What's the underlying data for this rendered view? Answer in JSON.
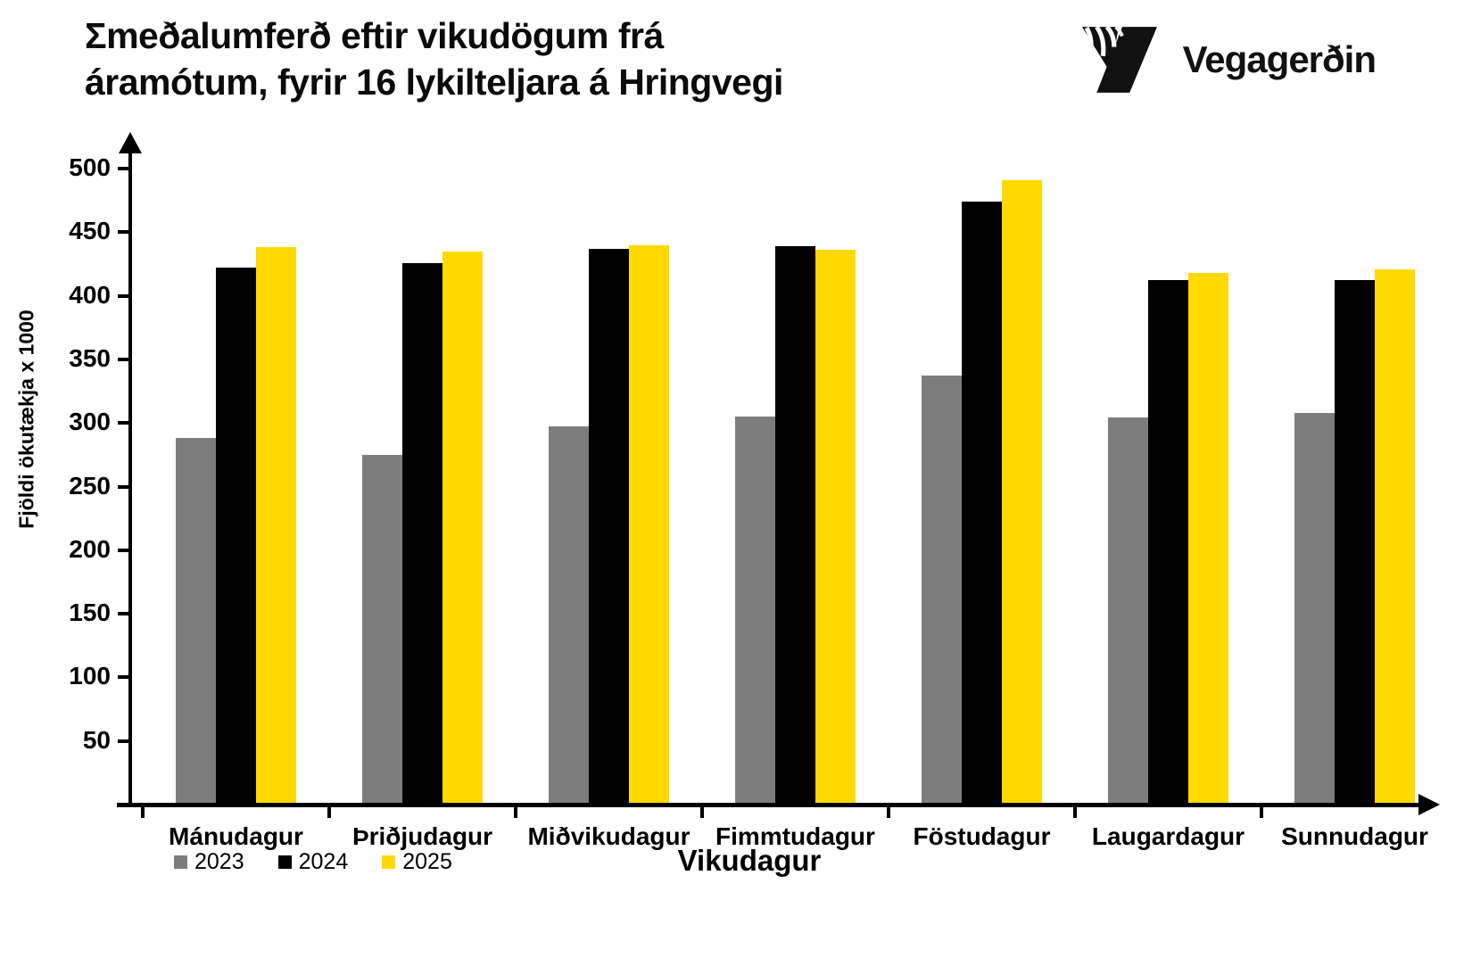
{
  "header": {
    "logo_text": "Vegagerðin"
  },
  "chart_data": {
    "type": "bar",
    "title": "Σmeðalumferð eftir vikudögum frá áramótum, fyrir 16 lykilteljara á Hringvegi",
    "title_line1": "Σmeðalumferð eftir vikudögum frá",
    "title_line2": "áramótum, fyrir 16 lykilteljara á Hringvegi",
    "xlabel": "Vikudagur",
    "ylabel": "Fjöldi ökutækja x 1000",
    "categories": [
      "Mánudagur",
      "Þriðjudagur",
      "Miðvikudagur",
      "Fimmtudagur",
      "Föstudagur",
      "Laugardagur",
      "Sunnudagur"
    ],
    "series": [
      {
        "name": "2023",
        "color": "#7d7d7d",
        "values": [
          288,
          275,
          297,
          305,
          337,
          304,
          308
        ]
      },
      {
        "name": "2024",
        "color": "#000000",
        "values": [
          422,
          426,
          437,
          439,
          474,
          412,
          412
        ]
      },
      {
        "name": "2025",
        "color": "#ffd900",
        "values": [
          438,
          435,
          440,
          436,
          491,
          418,
          421
        ]
      }
    ],
    "ylim": [
      0,
      500
    ],
    "yticks": [
      50,
      100,
      150,
      200,
      250,
      300,
      350,
      400,
      450,
      500
    ],
    "grid": false,
    "legend_position": "bottom-left"
  }
}
